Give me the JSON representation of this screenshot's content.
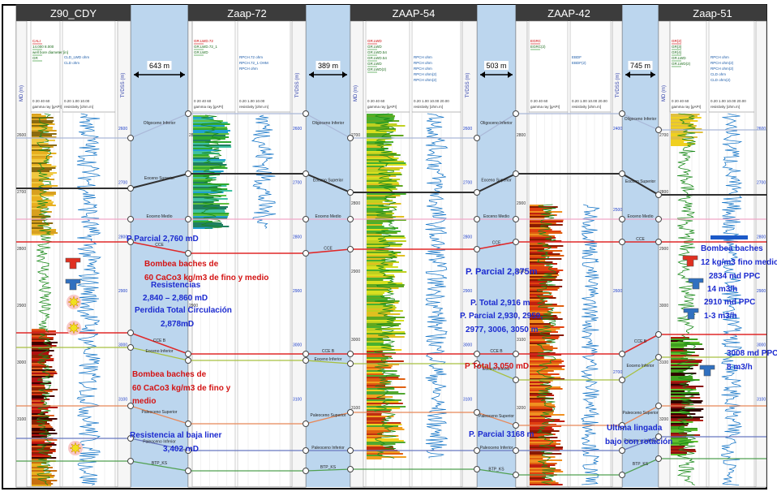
{
  "colors": {
    "header": "#3c3c3c",
    "corridor": "#bcd6ee",
    "red_ann": "#d41414",
    "blue_ann": "#1c2bd0",
    "gr": "#1a8a1a",
    "res": "#1a78c8"
  },
  "wells": [
    {
      "name": "Z90_CDY",
      "md": "MD (m)",
      "tvdss": "TVDSS (m)",
      "legend_left": [
        "CALI",
        "14.000   8.000",
        "well bore diameter [in]",
        "GR"
      ],
      "legend_right": [
        "CLD_LWD   ohm",
        "CLD ohm"
      ],
      "track1_label": "gamma ray [gAPI]",
      "track1_scale": "0  20  40  60",
      "track2_label": "resistivity [ohm.m]",
      "track2_scale": "0.20  1.00  10.00",
      "md_ticks": [
        "2600",
        "2700",
        "2800",
        "2900",
        "3000",
        "3100"
      ],
      "tvd_ticks": [
        "2600",
        "2700",
        "2800",
        "2900",
        "3000",
        "3100"
      ]
    },
    {
      "name": "Zaap-72",
      "md": "",
      "tvdss": "TVDSS (m)",
      "legend_left": [
        "GR.LWD.72",
        "GR.LWD.72_1",
        "GR.LWD"
      ],
      "legend_right": [
        "RPCH.72 ohm",
        "RPCH.72_1 OHM",
        "RPCH ohm"
      ],
      "track1_label": "gamma ray [gAPI]",
      "track1_scale": "0  20  40  60",
      "track2_label": "resistivity [ohm.m]",
      "track2_scale": "0.20  1.00  10.00",
      "md_ticks": [
        "2800",
        "2900"
      ],
      "tvd_ticks": [
        "2600",
        "2700",
        "2800",
        "2900",
        "3000",
        "3100"
      ]
    },
    {
      "name": "ZAAP-54",
      "md": "MD (m)",
      "tvdss": "TVDSS (m)",
      "legend_left": [
        "GR.LWD",
        "GR.LWD",
        "GR.LWD.54",
        "GR.LWD.54",
        "GR.LWD",
        "GR.LWD(2)"
      ],
      "legend_right": [
        "RPCH ohm",
        "RPCH ohm",
        "RPCH ohm",
        "RPCH ohm(2)",
        "RPCH ohm(2)"
      ],
      "track1_label": "gamma ray [gAPI]",
      "track1_scale": "0  20  40  60",
      "track2_label": "resistivity [ohm.m]",
      "track2_scale": "0.20  1.00  10.00  20.00",
      "md_ticks": [
        "2700",
        "2800",
        "2900",
        "3000",
        "3100"
      ],
      "tvd_ticks": [
        "2600",
        "2700",
        "2800",
        "2900",
        "3000",
        "3100"
      ]
    },
    {
      "name": "ZAAP-42",
      "md": "",
      "tvdss": "TVDSS (m)",
      "legend_left": [
        "EGRC",
        "EGRC(2)"
      ],
      "legend_right": [
        "EBDF",
        "EBDF(2)"
      ],
      "track1_label": "gamma ray [gAPI]",
      "track1_scale": "0  20  40  60",
      "track2_label": "resistivity [ohm.m]",
      "track2_scale": "0.20  1.00  10.00  20.00",
      "md_ticks": [
        "2800",
        "2900",
        "3000",
        "3100",
        "3200"
      ],
      "tvd_ticks": [
        "2400",
        "2500",
        "2600",
        "2700"
      ]
    },
    {
      "name": "Zaap-51",
      "md": "MD (m)",
      "tvdss": "",
      "legend_left": [
        "GR(2)",
        "GR(3)",
        "GR(4)",
        "GR.LWD",
        "GR.LWD(2)"
      ],
      "legend_right": [
        "RPCH ohm",
        "RPCH ohm(2)",
        "RPCH ohm(2)",
        "CLD ohm",
        "CLD ohm(2)"
      ],
      "track1_label": "gamma ray [gAPI]",
      "track1_scale": "0  20  40  60",
      "track2_label": "resistivity [ohm.m]",
      "track2_scale": "0.20  1.00  10.00  20.00",
      "md_ticks": [
        "2700",
        "2800",
        "2900",
        "3000",
        "3100",
        "3200"
      ],
      "tvd_ticks": [
        "2600",
        "2700",
        "2800",
        "2900",
        "3000",
        "3100"
      ]
    }
  ],
  "spacings": [
    "643 m",
    "389 m",
    "503 m",
    "745 m"
  ],
  "formations": [
    "Oligoceno Inferior",
    "Eoceno Superior",
    "Eoceno Medio",
    "CCE",
    "CCE B",
    "Eoceno Inferior",
    "Paleoceno Superior",
    "Paleoceno Inferior",
    "BTP_KS"
  ],
  "annotations": {
    "a1": "P Parcial 2,760 mD",
    "a2": "Bombea baches de",
    "a3": "60 CaCo3  kg/m3  de fino y medio",
    "a4": "Resistencias",
    "a5": "2,840 – 2,860 mD",
    "a6": "Perdida Total Circulación",
    "a7": "2,878mD",
    "a8": "Bombea baches de",
    "a9": "60 CaCo3  kg/m3 de fino y",
    "a10": "medio",
    "a11": "Resistencia al baja liner",
    "a12": "3,402 mD",
    "b1": "P. Parcial 2,875m",
    "b2": "P. Total 2,916 m",
    "b3": "P. Parcial 2,930, 2959,",
    "b4": "2977, 3006, 3050 m",
    "b5": "P  Total 3,050 mD",
    "b6": "P. Parcial 3168 m",
    "c1": "Ultima lingada",
    "c2": "bajo con rotación",
    "d1": "Bombea baches",
    "d2": "12 kg/m3 fino medio",
    "d3": "2834  md PPC",
    "d4": "14 m3/h",
    "d5": "2910  md PPC",
    "d6": "1-3 m3/h",
    "d7": "3008  md PPC",
    "d8": "8 m3/h"
  }
}
